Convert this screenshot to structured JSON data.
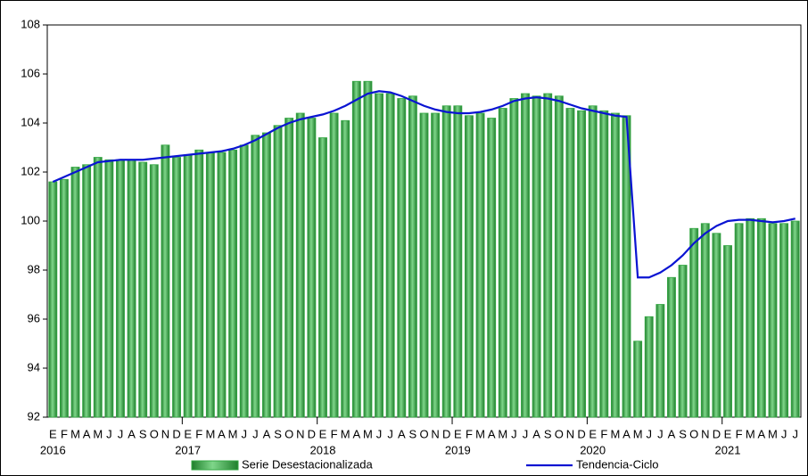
{
  "chart_data": {
    "type": "bar",
    "categories": [
      "E",
      "F",
      "M",
      "A",
      "M",
      "J",
      "J",
      "A",
      "S",
      "O",
      "N",
      "D",
      "E",
      "F",
      "M",
      "A",
      "M",
      "J",
      "J",
      "A",
      "S",
      "O",
      "N",
      "D",
      "E",
      "F",
      "M",
      "A",
      "M",
      "J",
      "J",
      "A",
      "S",
      "O",
      "N",
      "D",
      "E",
      "F",
      "M",
      "A",
      "M",
      "J",
      "J",
      "A",
      "S",
      "O",
      "N",
      "D",
      "E",
      "F",
      "M",
      "A",
      "M",
      "J",
      "J",
      "A",
      "S",
      "O",
      "N",
      "D",
      "E",
      "F",
      "M",
      "A",
      "M",
      "J",
      "J"
    ],
    "years": [
      "2016",
      "2017",
      "2018",
      "2019",
      "2020",
      "2021"
    ],
    "ylim": [
      92,
      108
    ],
    "yticks": [
      92,
      94,
      96,
      98,
      100,
      102,
      104,
      106,
      108
    ],
    "series": [
      {
        "name": "Serie Desestacionalizada",
        "type": "bar",
        "color": "#33a843",
        "values": [
          101.6,
          101.7,
          102.2,
          102.3,
          102.6,
          102.5,
          102.5,
          102.5,
          102.4,
          102.3,
          103.1,
          102.6,
          102.7,
          102.9,
          102.8,
          102.8,
          102.9,
          103.1,
          103.5,
          103.6,
          103.9,
          104.2,
          104.4,
          104.2,
          103.4,
          104.4,
          104.1,
          105.7,
          105.7,
          105.2,
          105.2,
          105.0,
          105.1,
          104.4,
          104.4,
          104.7,
          104.7,
          104.3,
          104.4,
          104.2,
          104.6,
          105.0,
          105.2,
          105.1,
          105.2,
          105.1,
          104.6,
          104.5,
          104.7,
          104.5,
          104.4,
          104.3,
          95.1,
          96.1,
          96.6,
          97.7,
          98.2,
          99.7,
          99.9,
          99.5,
          99.0,
          99.9,
          100.1,
          100.1,
          99.9,
          99.9,
          100.0
        ]
      },
      {
        "name": "Tendencia-Ciclo",
        "type": "line",
        "color": "#0a14d2",
        "values": [
          101.6,
          101.8,
          102.0,
          102.2,
          102.4,
          102.45,
          102.5,
          102.5,
          102.5,
          102.55,
          102.6,
          102.65,
          102.7,
          102.75,
          102.8,
          102.85,
          102.95,
          103.1,
          103.3,
          103.55,
          103.8,
          104.0,
          104.15,
          104.25,
          104.35,
          104.5,
          104.7,
          104.95,
          105.2,
          105.3,
          105.25,
          105.1,
          104.9,
          104.7,
          104.55,
          104.45,
          104.4,
          104.4,
          104.45,
          104.55,
          104.7,
          104.9,
          105.0,
          105.05,
          105.0,
          104.9,
          104.75,
          104.6,
          104.5,
          104.4,
          104.3,
          104.25,
          97.7,
          97.7,
          97.9,
          98.2,
          98.6,
          99.1,
          99.5,
          99.8,
          100.0,
          100.05,
          100.05,
          100.0,
          99.95,
          100.0,
          100.1
        ]
      }
    ]
  }
}
